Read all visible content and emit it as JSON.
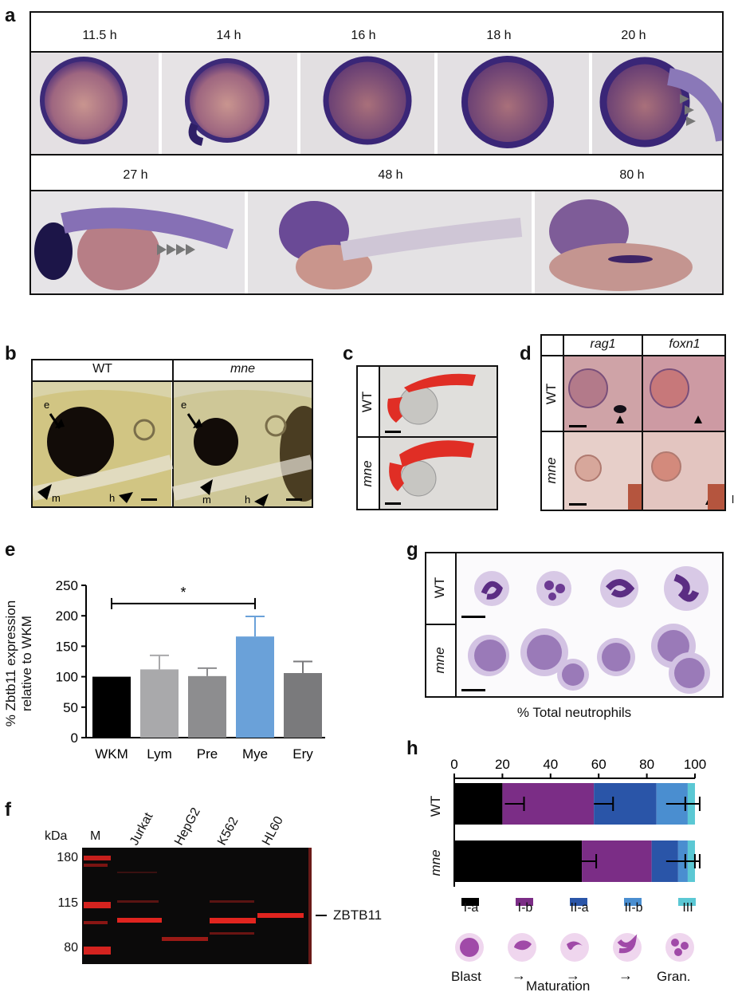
{
  "panel_a": {
    "label": "a",
    "top_times": [
      "11.5 h",
      "14 h",
      "16 h",
      "18 h",
      "20 h"
    ],
    "bottom_times": [
      "27 h",
      "48 h",
      "80 h"
    ]
  },
  "panel_b": {
    "label": "b",
    "headers": [
      "WT",
      "mne"
    ],
    "arrow_labels": {
      "e": "e",
      "m": "m",
      "h": "h"
    }
  },
  "panel_c": {
    "label": "c",
    "rows": [
      "WT",
      "mne"
    ]
  },
  "panel_d": {
    "label": "d",
    "cols": [
      "rag1",
      "foxn1"
    ],
    "rows": [
      "WT",
      "mne"
    ],
    "side_mark": "l"
  },
  "panel_e": {
    "label": "e",
    "ylabel_line1": "% Zbtb11 expression",
    "ylabel_line2": "relative to WKM",
    "significance": "*"
  },
  "panel_f": {
    "label": "f",
    "unit": "kDa",
    "lanes": [
      "M",
      "Jurkat",
      "HepG2",
      "K562",
      "HL60"
    ],
    "markers": [
      "180",
      "115",
      "80"
    ],
    "band_label": "ZBTB11"
  },
  "panel_g": {
    "label": "g",
    "rows": [
      "WT",
      "mne"
    ],
    "caption": "% Total neutrophils"
  },
  "panel_h": {
    "label": "h",
    "stages": [
      "I-a",
      "I-b",
      "II-a",
      "II-b",
      "III"
    ],
    "maturation": {
      "start": "Blast",
      "arrow": "→",
      "end": "Gran.",
      "title": "Maturation"
    }
  },
  "chart_data": [
    {
      "type": "bar",
      "panel": "e",
      "categories": [
        "WKM",
        "Lym",
        "Pre",
        "Mye",
        "Ery"
      ],
      "values": [
        100,
        112,
        101,
        166,
        106
      ],
      "errors": [
        0,
        23,
        13,
        33,
        19
      ],
      "colors": [
        "#000000",
        "#a9a9ab",
        "#8d8d8f",
        "#6aa1d9",
        "#7a7a7c"
      ],
      "ylim": [
        0,
        250
      ],
      "yticks": [
        0,
        50,
        100,
        150,
        200,
        250
      ],
      "xlabel": "",
      "ylabel": "% Zbtb11 expression relative to WKM"
    },
    {
      "type": "bar",
      "panel": "h",
      "orientation": "horizontal-stacked",
      "categories": [
        "WT",
        "mne"
      ],
      "xlim": [
        0,
        100
      ],
      "xticks": [
        0,
        20,
        40,
        60,
        80,
        100
      ],
      "series": [
        {
          "name": "I-a",
          "color": "#000000",
          "values": [
            20,
            53
          ]
        },
        {
          "name": "I-b",
          "color": "#7b2d86",
          "values": [
            38,
            29
          ]
        },
        {
          "name": "II-a",
          "color": "#2a55a8",
          "values": [
            26,
            11
          ]
        },
        {
          "name": "II-b",
          "color": "#4a8ed0",
          "values": [
            13,
            4
          ]
        },
        {
          "name": "III",
          "color": "#5bc8d4",
          "values": [
            3,
            3
          ]
        }
      ],
      "error_caps": [
        [
          25,
          62,
          92,
          98
        ],
        [
          55,
          92,
          96,
          98
        ]
      ],
      "title": "% Total neutrophils"
    }
  ]
}
